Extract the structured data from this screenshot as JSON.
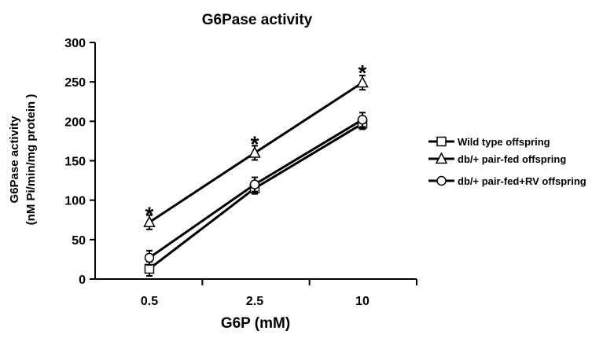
{
  "chart_data": {
    "type": "line",
    "title": "G6Pase activity",
    "xlabel": "G6P (mM)",
    "ylabel": [
      "G6Pase activity",
      "(nM Pi/min/mg protein )"
    ],
    "categories": [
      "0.5",
      "2.5",
      "10"
    ],
    "ylim": [
      0,
      300
    ],
    "yticks": [
      0,
      50,
      100,
      150,
      200,
      250,
      300
    ],
    "grid": false,
    "legend_position": "right",
    "series": [
      {
        "name": "Wild type offspring",
        "marker": "square",
        "values": [
          13,
          115,
          197
        ],
        "errors": [
          9,
          7,
          7
        ]
      },
      {
        "name": "db/+ pair-fed offspring",
        "marker": "triangle",
        "values": [
          72,
          160,
          249
        ],
        "errors": [
          9,
          9,
          9
        ]
      },
      {
        "name": "db/+ pair-fed+RV offspring",
        "marker": "circle",
        "values": [
          27,
          120,
          202
        ],
        "errors": [
          9,
          9,
          9
        ]
      }
    ],
    "annotations": [
      {
        "text": "*",
        "category": "0.5",
        "y": 88
      },
      {
        "text": "*",
        "category": "2.5",
        "y": 178
      },
      {
        "text": "*",
        "category": "10",
        "y": 268
      }
    ],
    "colors": {
      "line": "#000000",
      "marker_fill": "#ffffff"
    }
  }
}
